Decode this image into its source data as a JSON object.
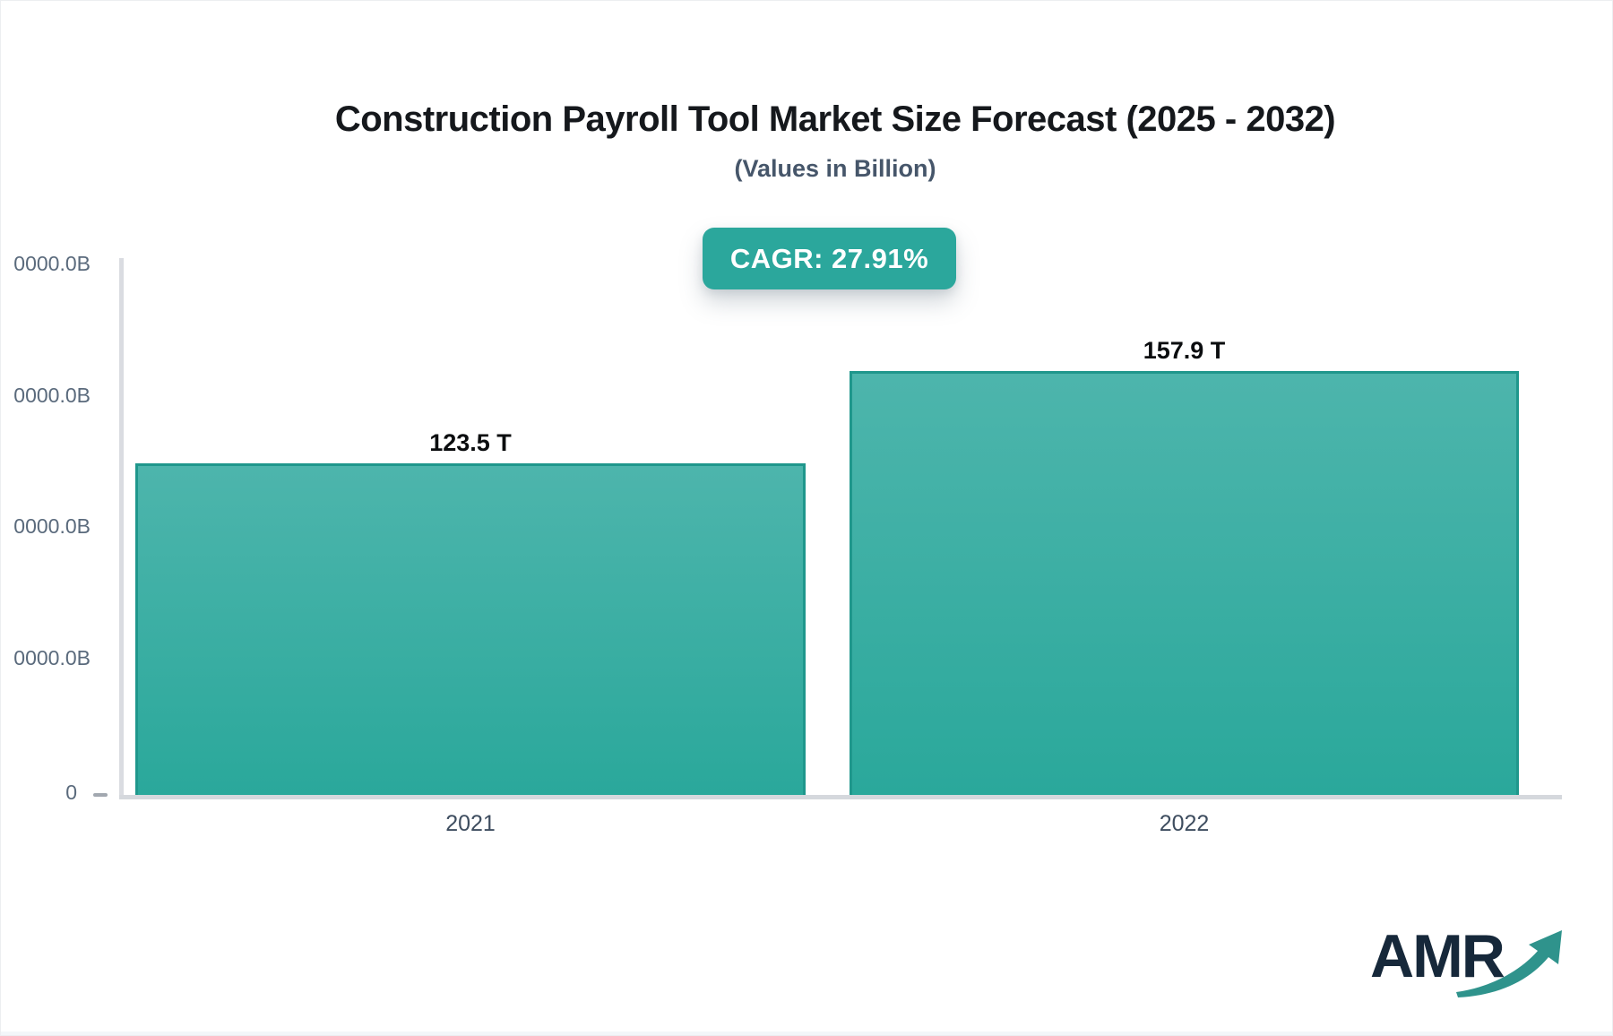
{
  "header": {
    "title": "Construction Payroll Tool Market Size Forecast (2025 - 2032)",
    "subtitle": "(Values in Billion)"
  },
  "badge": {
    "label": "CAGR: 27.91%",
    "bg_color": "#2BA79C",
    "text_color": "#FFFFFF"
  },
  "chart_data": {
    "type": "bar",
    "title": "Construction Payroll Tool Market Size Forecast (2025 - 2032)",
    "subtitle": "(Values in Billion)",
    "cagr_percent": 27.91,
    "categories": [
      "2021",
      "2022"
    ],
    "values": [
      123.5,
      157.9
    ],
    "value_labels": [
      "123.5 T",
      "157.9 T"
    ],
    "unit": "T",
    "ylim_billion": [
      0,
      200000
    ],
    "y_axis": {
      "visible_tick_labels": [
        "0000.0B",
        "0000.0B",
        "0000.0B",
        "0000.0B",
        "0"
      ]
    },
    "grid": false,
    "legend_position": "none",
    "colors": {
      "bar_gradient_top": "#4DB5AC",
      "bar_gradient_bottom": "#2AA89B",
      "bar_border": "#1F978C",
      "axis_line": "#D5D8DD",
      "tick_label": "#5A6A7C",
      "category_label": "#3E4D5F",
      "value_label": "#0B0D0F"
    }
  },
  "logo": {
    "text": "AMR",
    "text_color": "#16283A",
    "arrow_color": "#2F938C"
  }
}
